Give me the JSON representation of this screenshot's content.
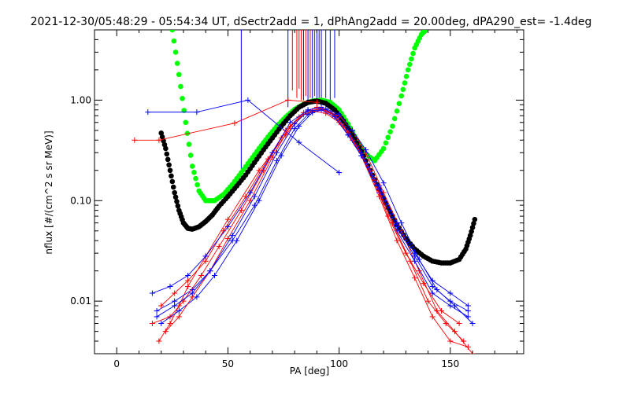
{
  "chart_data": {
    "type": "line",
    "title": "2021-12-30/05:48:29 - 05:54:34 UT, dSectr2add = 1, dPhAng2add = 20.00deg, dPA290_est=  -1.4deg",
    "xlabel": "PA [deg]",
    "ylabel": "nflux [#/(cm^2 s sr MeV)]",
    "xlim": [
      -10,
      183
    ],
    "ylim": [
      0.003,
      5.0
    ],
    "yscale": "log",
    "grid": false,
    "x_ticks": [
      "0",
      "50",
      "100",
      "150"
    ],
    "y_ticks": [
      "0.01",
      "0.10",
      "1.00"
    ],
    "x_tick_values": [
      0,
      50,
      100,
      150
    ],
    "y_tick_values": [
      0.01,
      0.1,
      1.0
    ],
    "colors": {
      "red": "#ff0000",
      "blue": "#0000ff",
      "black": "#000000",
      "green": "#00ff00"
    },
    "series": [
      {
        "color": "green",
        "style": "thick-dots",
        "x": [
          25,
          28,
          31,
          34,
          37,
          40,
          44,
          48,
          52,
          56,
          60,
          64,
          68,
          72,
          76,
          80,
          84,
          88,
          92,
          96,
          100,
          104,
          108,
          112,
          116,
          120,
          124,
          128,
          131,
          134,
          137,
          139
        ],
        "y": [
          5.0,
          1.8,
          0.6,
          0.22,
          0.125,
          0.1,
          0.1,
          0.115,
          0.145,
          0.19,
          0.25,
          0.33,
          0.43,
          0.55,
          0.68,
          0.81,
          0.91,
          0.98,
          1.0,
          0.95,
          0.8,
          0.58,
          0.4,
          0.29,
          0.25,
          0.33,
          0.55,
          1.1,
          2.0,
          3.3,
          4.5,
          5.0
        ]
      },
      {
        "color": "black",
        "style": "thick-dots",
        "x": [
          20,
          22,
          24,
          26,
          28,
          30,
          32,
          34,
          37,
          40,
          43,
          46,
          50,
          54,
          58,
          62,
          66,
          70,
          74,
          78,
          82,
          86,
          90,
          94,
          98,
          102,
          106,
          110,
          114,
          118,
          122,
          126,
          130,
          134,
          138,
          142,
          146,
          150,
          154,
          157,
          159,
          161
        ],
        "y": [
          0.47,
          0.33,
          0.2,
          0.12,
          0.08,
          0.06,
          0.053,
          0.052,
          0.055,
          0.062,
          0.072,
          0.088,
          0.11,
          0.14,
          0.18,
          0.24,
          0.32,
          0.42,
          0.55,
          0.7,
          0.85,
          0.95,
          0.98,
          0.93,
          0.8,
          0.62,
          0.45,
          0.31,
          0.2,
          0.13,
          0.085,
          0.058,
          0.042,
          0.033,
          0.028,
          0.025,
          0.024,
          0.024,
          0.026,
          0.033,
          0.045,
          0.065
        ]
      },
      {
        "color": "blue",
        "x": [
          14,
          36,
          59,
          82,
          100
        ],
        "y": [
          0.76,
          0.76,
          1.0,
          0.38,
          0.19
        ]
      },
      {
        "color": "red",
        "x": [
          8,
          19,
          53,
          77,
          90
        ],
        "y": [
          0.4,
          0.4,
          0.59,
          1.0,
          0.95
        ]
      },
      {
        "color": "red",
        "x": [
          19,
          24,
          28,
          32,
          40,
          50,
          64,
          76,
          84,
          92,
          100,
          106,
          112,
          120,
          128,
          136,
          144,
          152,
          160
        ],
        "y": [
          0.004,
          0.006,
          0.009,
          0.014,
          0.028,
          0.065,
          0.2,
          0.45,
          0.72,
          0.8,
          0.7,
          0.5,
          0.3,
          0.12,
          0.05,
          0.02,
          0.008,
          0.005,
          0.003
        ]
      },
      {
        "color": "blue",
        "x": [
          18,
          26,
          34,
          42,
          52,
          62,
          72,
          80,
          86,
          92,
          98,
          104,
          110,
          118,
          126,
          134,
          142,
          150,
          158
        ],
        "y": [
          0.008,
          0.01,
          0.013,
          0.02,
          0.04,
          0.09,
          0.25,
          0.52,
          0.72,
          0.85,
          0.7,
          0.45,
          0.28,
          0.12,
          0.05,
          0.025,
          0.012,
          0.009,
          0.007
        ]
      },
      {
        "color": "red",
        "x": [
          16,
          24,
          30,
          38,
          46,
          56,
          66,
          74,
          82,
          88,
          94,
          100,
          106,
          114,
          122,
          130,
          138,
          146,
          154
        ],
        "y": [
          0.006,
          0.007,
          0.01,
          0.018,
          0.035,
          0.08,
          0.2,
          0.42,
          0.68,
          0.78,
          0.74,
          0.6,
          0.4,
          0.2,
          0.07,
          0.03,
          0.015,
          0.008,
          0.006
        ]
      },
      {
        "color": "blue",
        "x": [
          20,
          28,
          36,
          44,
          54,
          64,
          74,
          82,
          88,
          94,
          100,
          106,
          112,
          120,
          128,
          136,
          144,
          152,
          160
        ],
        "y": [
          0.006,
          0.008,
          0.011,
          0.018,
          0.04,
          0.1,
          0.28,
          0.55,
          0.75,
          0.82,
          0.72,
          0.5,
          0.32,
          0.15,
          0.06,
          0.026,
          0.013,
          0.009,
          0.006
        ]
      },
      {
        "color": "red",
        "x": [
          20,
          26,
          32,
          40,
          48,
          58,
          68,
          76,
          84,
          90,
          96,
          102,
          108,
          116,
          124,
          132,
          140,
          148,
          156
        ],
        "y": [
          0.009,
          0.012,
          0.016,
          0.025,
          0.05,
          0.11,
          0.26,
          0.5,
          0.75,
          0.85,
          0.76,
          0.55,
          0.35,
          0.16,
          0.06,
          0.025,
          0.01,
          0.006,
          0.004
        ]
      },
      {
        "color": "blue",
        "x": [
          16,
          24,
          32,
          40,
          50,
          60,
          70,
          78,
          86,
          92,
          98,
          104,
          110,
          118,
          126,
          134,
          142,
          150,
          158
        ],
        "y": [
          0.012,
          0.014,
          0.018,
          0.028,
          0.055,
          0.12,
          0.3,
          0.6,
          0.8,
          0.85,
          0.72,
          0.5,
          0.3,
          0.14,
          0.06,
          0.03,
          0.016,
          0.012,
          0.009
        ]
      },
      {
        "color": "red",
        "x": [
          22,
          28,
          34,
          42,
          50,
          60,
          70,
          78,
          86,
          92,
          98,
          104,
          110,
          118,
          126,
          134,
          142,
          150,
          158
        ],
        "y": [
          0.005,
          0.007,
          0.011,
          0.02,
          0.042,
          0.1,
          0.27,
          0.55,
          0.78,
          0.82,
          0.7,
          0.48,
          0.28,
          0.11,
          0.04,
          0.017,
          0.007,
          0.004,
          0.0035
        ]
      },
      {
        "color": "blue",
        "x": [
          18,
          26,
          34,
          42,
          52,
          62,
          72,
          80,
          86,
          92,
          98,
          104,
          110,
          118,
          126,
          134,
          142,
          150,
          158
        ],
        "y": [
          0.007,
          0.009,
          0.012,
          0.02,
          0.045,
          0.11,
          0.3,
          0.58,
          0.78,
          0.8,
          0.68,
          0.45,
          0.28,
          0.13,
          0.055,
          0.028,
          0.014,
          0.01,
          0.008
        ]
      }
    ]
  }
}
